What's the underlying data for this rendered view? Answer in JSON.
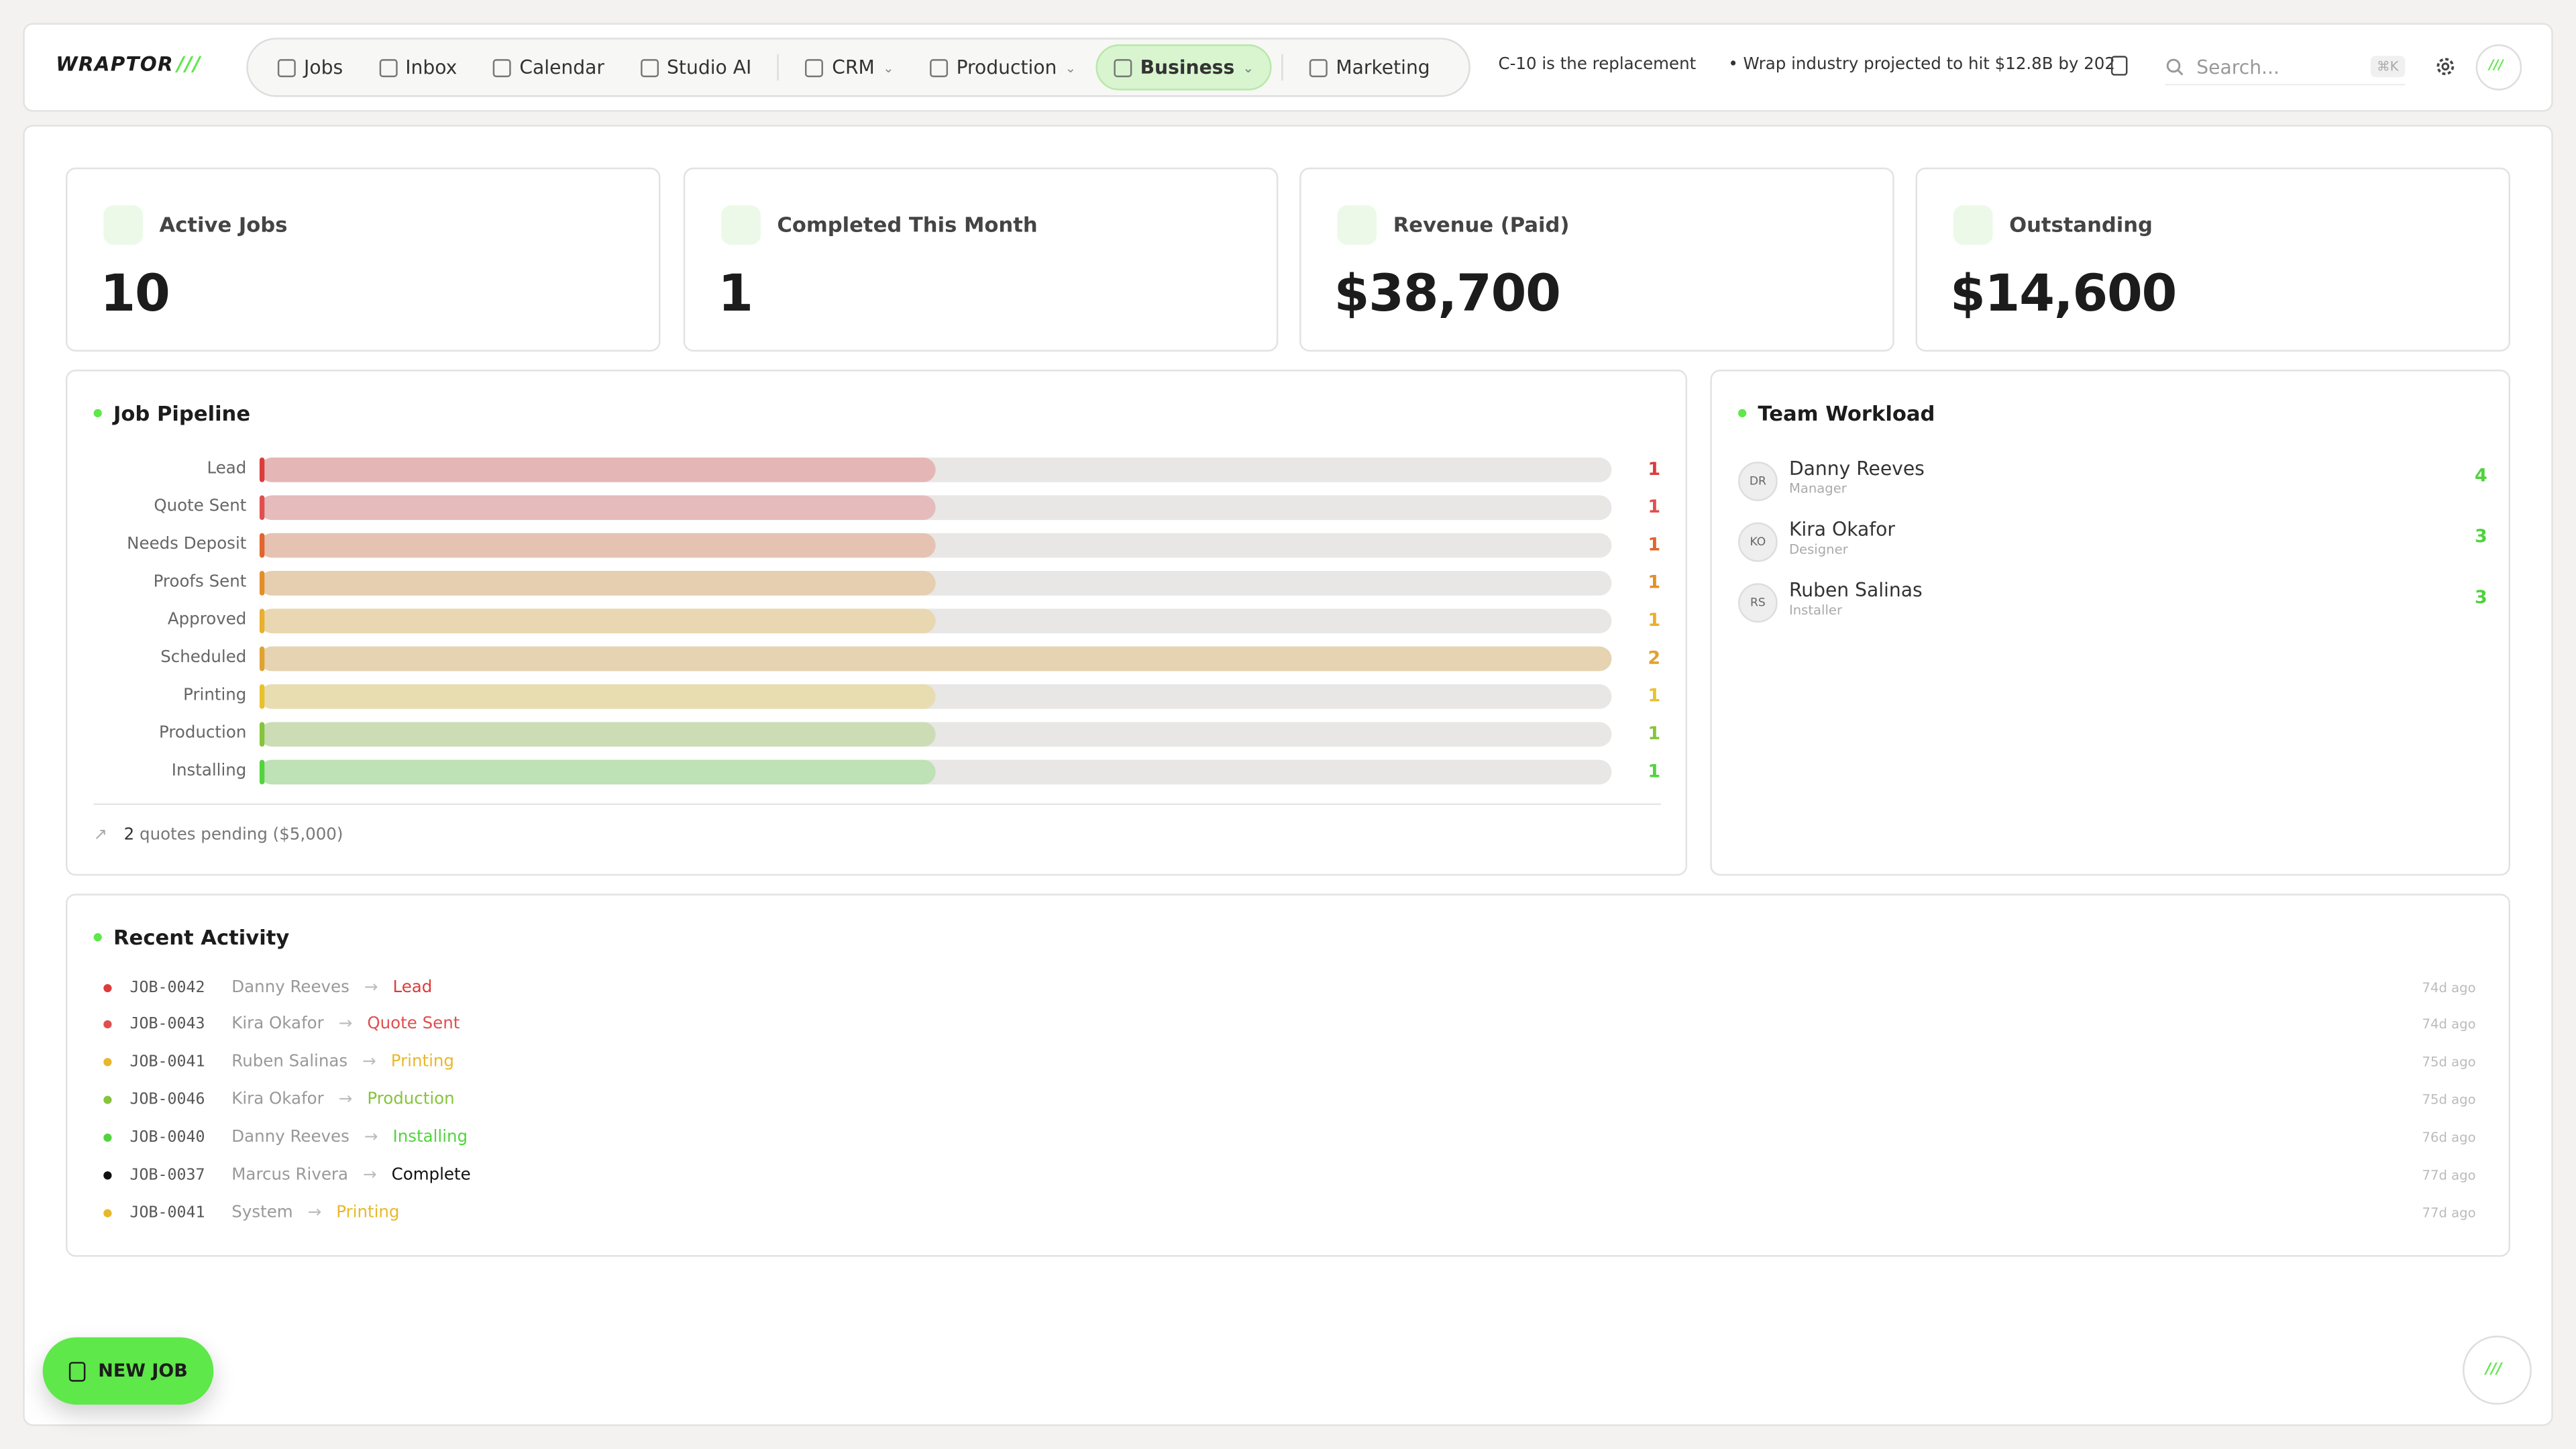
{
  "nav": {
    "logo": "WRAPTOR",
    "items": [
      "Jobs",
      "Inbox",
      "Calendar",
      "Studio AI",
      "CRM",
      "Production",
      "Business",
      "Marketing"
    ],
    "ticker": [
      "C-10 is the replacement",
      "Wrap industry projected to hit $12.8B by 202"
    ],
    "search": "Search...",
    "shortcut": "⌘K"
  },
  "stats": [
    {
      "label": "Active Jobs",
      "value": "10"
    },
    {
      "label": "Completed This Month",
      "value": "1"
    },
    {
      "label": "Revenue (Paid)",
      "value": "$38,700"
    },
    {
      "label": "Outstanding",
      "value": "$14,600"
    }
  ],
  "pipeline": {
    "title": "Job Pipeline",
    "stages": [
      {
        "label": "Lead",
        "count": 1,
        "color": "#dc3c3c"
      },
      {
        "label": "Quote Sent",
        "count": 1,
        "color": "#e04f4f"
      },
      {
        "label": "Needs Deposit",
        "count": 1,
        "color": "#e0652e"
      },
      {
        "label": "Proofs Sent",
        "count": 1,
        "color": "#e38e2a"
      },
      {
        "label": "Approved",
        "count": 1,
        "color": "#e8b02c"
      },
      {
        "label": "Scheduled",
        "count": 2,
        "color": "#dfa330"
      },
      {
        "label": "Printing",
        "count": 1,
        "color": "#e8c22c"
      },
      {
        "label": "Production",
        "count": 1,
        "color": "#86c43c"
      },
      {
        "label": "Installing",
        "count": 1,
        "color": "#52d43e"
      }
    ],
    "footer_count": "2",
    "footer_text": "quotes pending ($5,000)"
  },
  "team": {
    "title": "Team Workload",
    "members": [
      {
        "initials": "DR",
        "name": "Danny Reeves",
        "role": "Manager",
        "count": "4"
      },
      {
        "initials": "KO",
        "name": "Kira Okafor",
        "role": "Designer",
        "count": "3"
      },
      {
        "initials": "RS",
        "name": "Ruben Salinas",
        "role": "Installer",
        "count": "3"
      }
    ]
  },
  "activity": {
    "title": "Recent Activity",
    "rows": [
      {
        "job": "JOB-0042",
        "person": "Danny Reeves",
        "status": "Lead",
        "color": "#dc3c3c",
        "time": "74d ago"
      },
      {
        "job": "JOB-0043",
        "person": "Kira Okafor",
        "status": "Quote Sent",
        "color": "#e04f4f",
        "time": "74d ago"
      },
      {
        "job": "JOB-0041",
        "person": "Ruben Salinas",
        "status": "Printing",
        "color": "#e8b82c",
        "time": "75d ago"
      },
      {
        "job": "JOB-0046",
        "person": "Kira Okafor",
        "status": "Production",
        "color": "#86c43c",
        "time": "75d ago"
      },
      {
        "job": "JOB-0040",
        "person": "Danny Reeves",
        "status": "Installing",
        "color": "#52d43e",
        "time": "76d ago"
      },
      {
        "job": "JOB-0037",
        "person": "Marcus Rivera",
        "status": "Complete",
        "color": "#111111",
        "time": "77d ago"
      },
      {
        "job": "JOB-0041",
        "person": "System",
        "status": "Printing",
        "color": "#e8b82c",
        "time": "77d ago"
      }
    ]
  },
  "fab": "NEW JOB"
}
